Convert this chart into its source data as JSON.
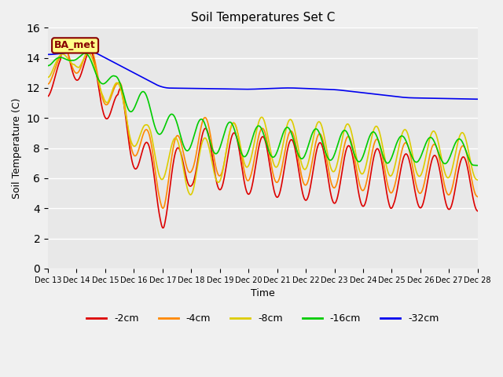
{
  "title": "Soil Temperatures Set C",
  "xlabel": "Time",
  "ylabel": "Soil Temperature (C)",
  "ylim": [
    0,
    16
  ],
  "yticks": [
    0,
    2,
    4,
    6,
    8,
    10,
    12,
    14,
    16
  ],
  "legend_labels": [
    "-2cm",
    "-4cm",
    "-8cm",
    "-16cm",
    "-32cm"
  ],
  "legend_colors": [
    "#dd0000",
    "#ff8800",
    "#ddcc00",
    "#00cc00",
    "#0000ee"
  ],
  "annotation_text": "BA_met",
  "annotation_color": "#880000",
  "annotation_bg": "#ffff88",
  "line_width": 1.2,
  "n_points": 720,
  "n_days": 15
}
